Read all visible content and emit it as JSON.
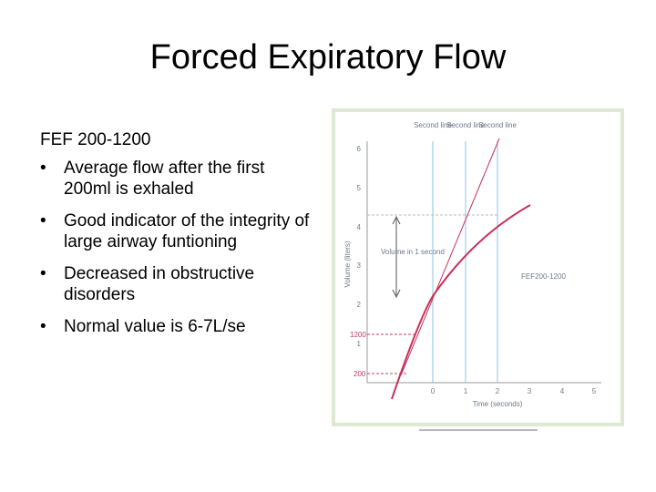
{
  "header": {
    "title": "Forced Expiratory Flow"
  },
  "body": {
    "heading": "FEF 200-1200",
    "bullets": [
      "Average flow after the first 200ml is exhaled",
      "Good indicator of the integrity of large airway funtioning",
      "Decreased in obstructive disorders",
      "Normal value is 6-7L/se"
    ]
  },
  "figure": {
    "column_labels": [
      "Second line",
      "Second line",
      "Second line"
    ],
    "y_axis_label": "Volume (liters)",
    "x_axis_label": "Time (seconds)",
    "yticks": [
      6,
      5,
      4,
      3,
      2,
      1
    ],
    "xticks": [
      0,
      1,
      2,
      3,
      4,
      5
    ],
    "annotations": {
      "volume": "Volume in 1 second",
      "fef": "FEF200-1200",
      "mark_1200": "1200",
      "mark_200": "200"
    }
  }
}
